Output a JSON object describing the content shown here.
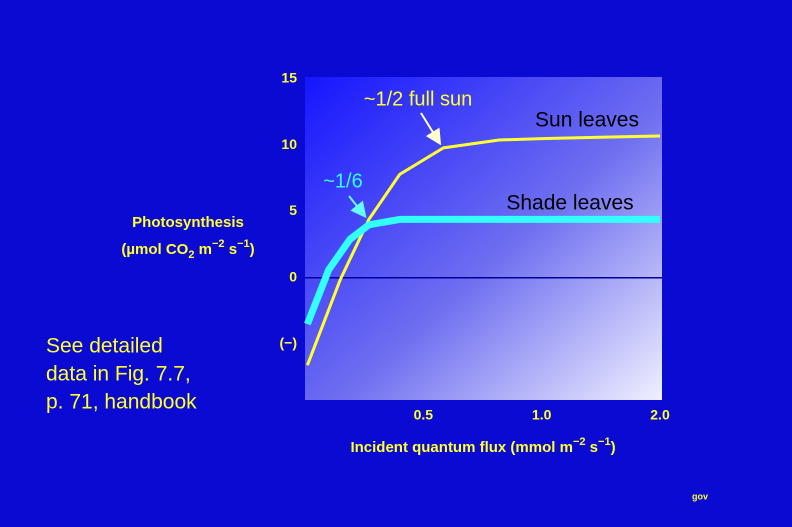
{
  "chart_data": {
    "type": "line",
    "ylabel": [
      "Photosynthesis",
      "(µmol CO",
      "2",
      " m",
      "−2",
      " s",
      "−1",
      ")"
    ],
    "xlabel": [
      "Incident quantum flux (mmol m",
      "−2",
      " s",
      "−1",
      ")"
    ],
    "xlim": [
      0,
      2
    ],
    "xticks": [
      0.5,
      {
        "value": 1,
        "label": "1.0"
      },
      {
        "value": 2,
        "label": "2.0"
      }
    ],
    "x_scale": "piecewise",
    "ylim": [
      -9,
      15
    ],
    "yticks": [
      15,
      10,
      5,
      0,
      {
        "value": -5,
        "label": "(−)"
      }
    ],
    "zero_line": true,
    "series": [
      {
        "name": "Sun leaves",
        "color": "#ffff33",
        "x": [
          0.01,
          0.15,
          0.27,
          0.4,
          0.585,
          0.82,
          1.0,
          1.49,
          2.0
        ],
        "values": [
          -6.6,
          -0.1,
          4.4,
          7.8,
          9.8,
          10.4,
          10.5,
          10.6,
          10.7
        ]
      },
      {
        "name": "Shade leaves",
        "color": "#33ffff",
        "x": [
          0.01,
          0.1,
          0.19,
          0.27,
          0.4,
          0.61,
          2.0
        ],
        "values": [
          -3.5,
          0.6,
          2.9,
          4.0,
          4.4,
          4.4,
          4.4
        ]
      }
    ],
    "annotations": [
      "~1/2 full sun",
      "~1/6"
    ],
    "note": [
      "See detailed",
      "data in Fig. 7.7,",
      "p. 71, handbook"
    ],
    "footer": "gov"
  }
}
